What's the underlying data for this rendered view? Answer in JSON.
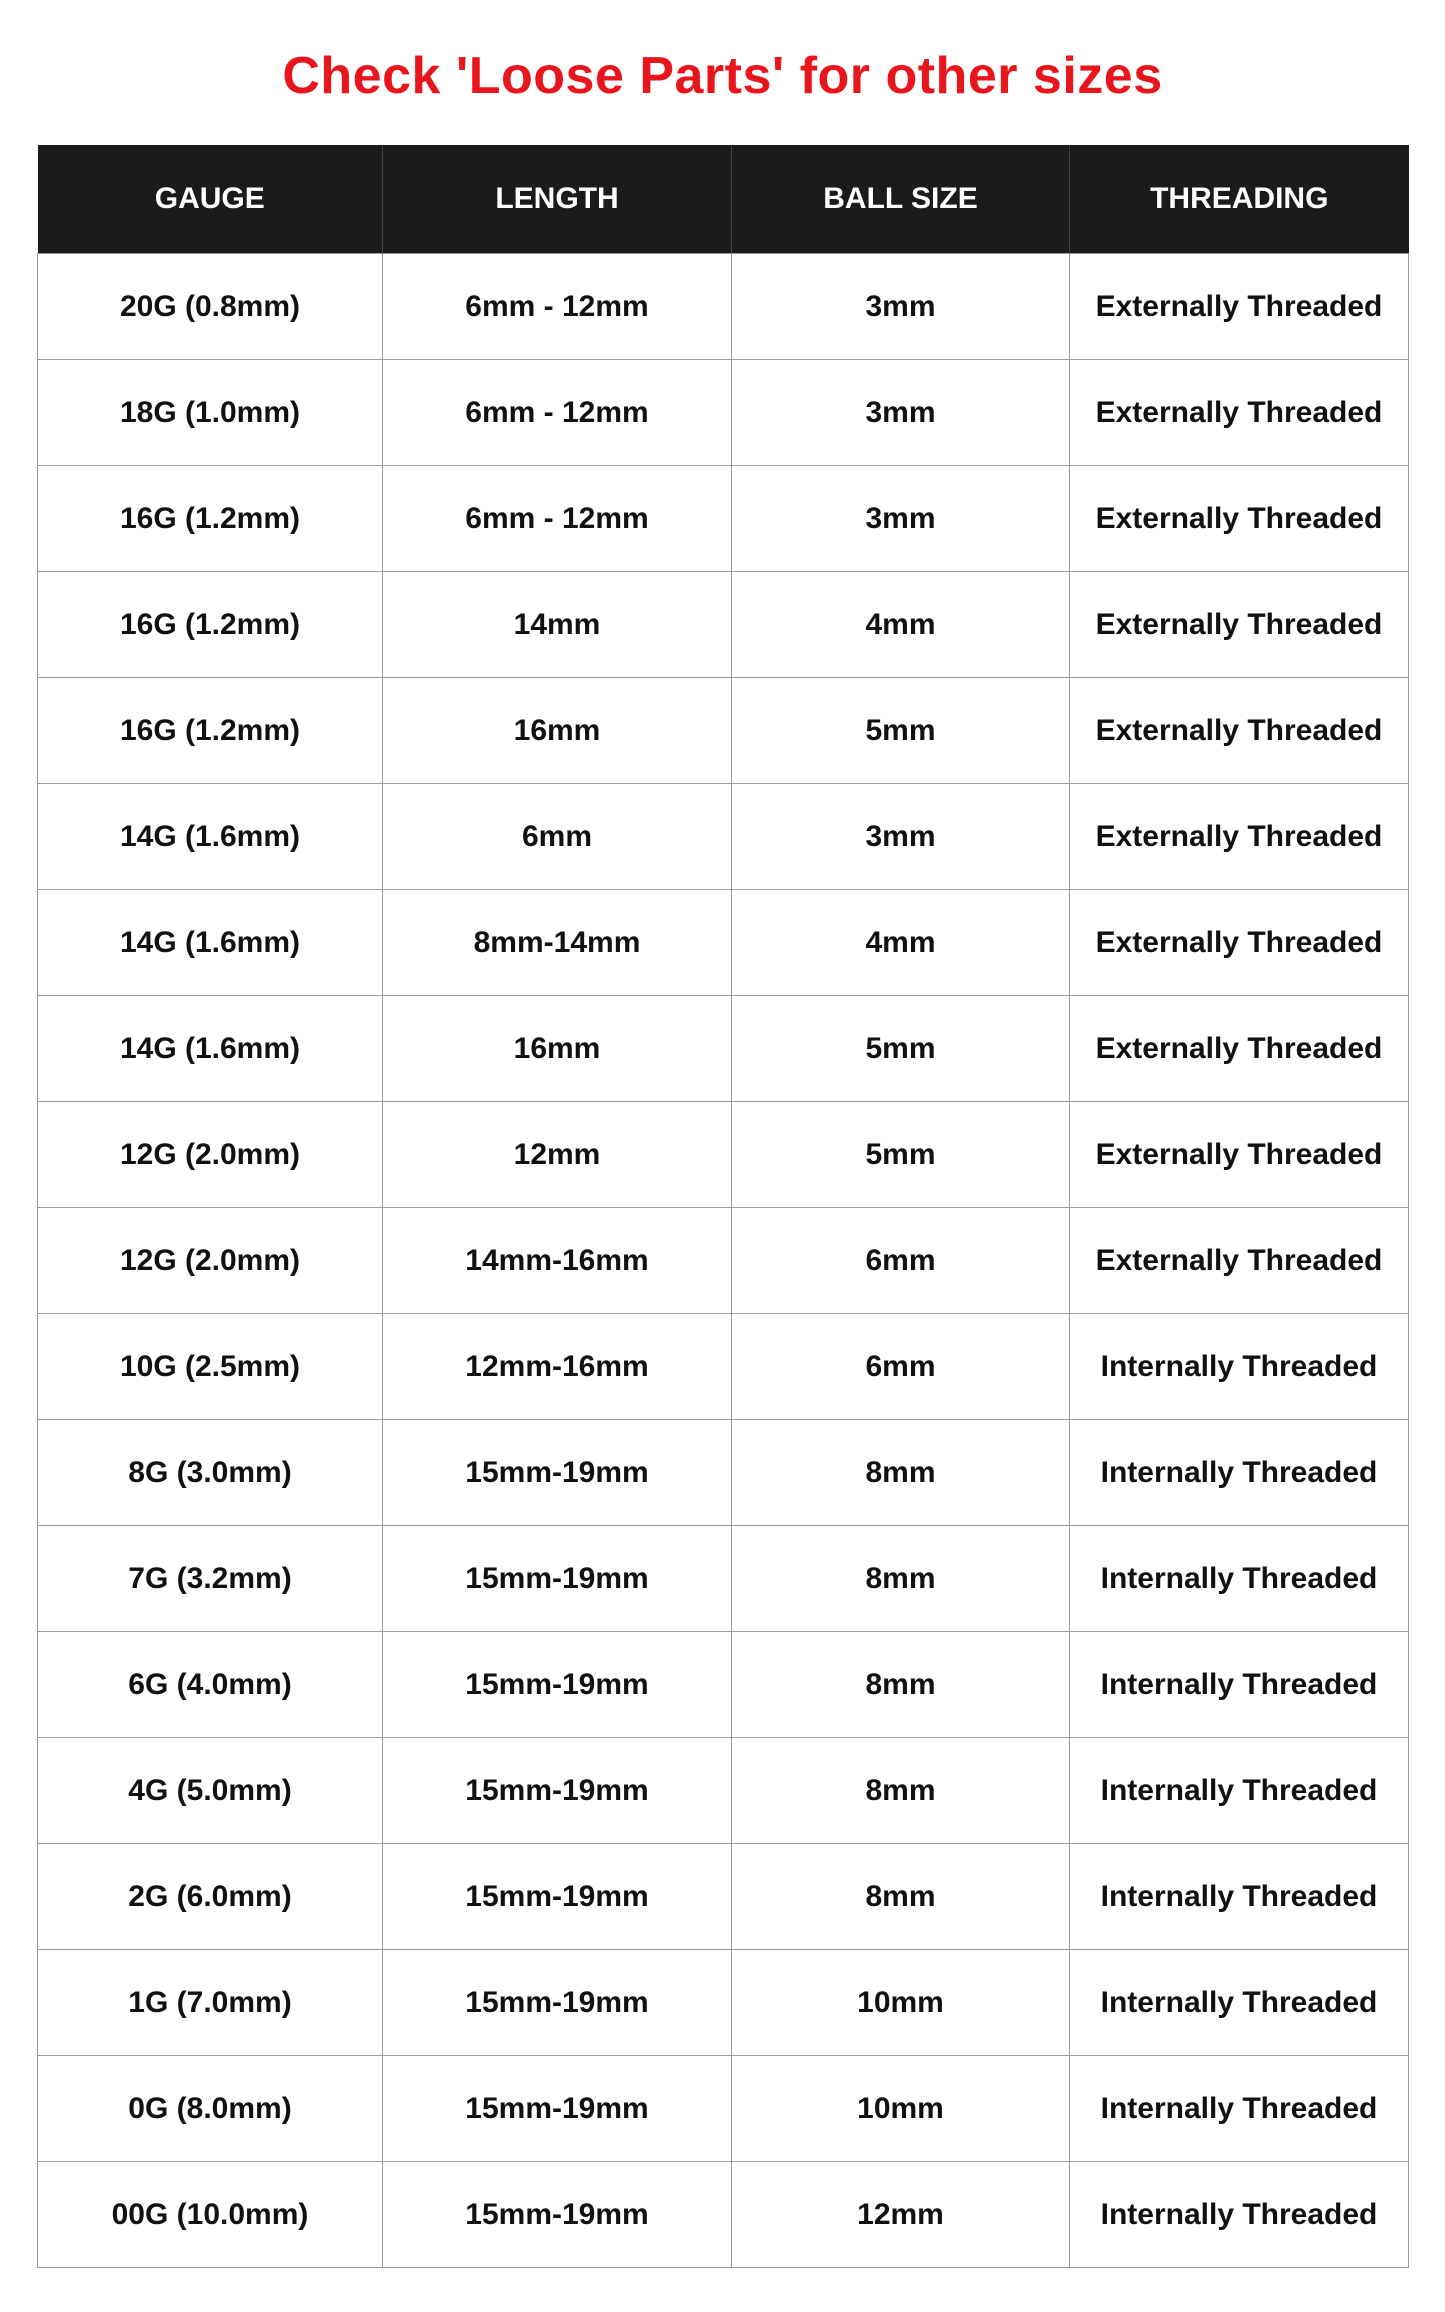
{
  "title": "Check 'Loose Parts' for other sizes",
  "colors": {
    "title": "#e8151d",
    "header_bg": "#1b1b1b"
  },
  "table": {
    "headers": [
      "GAUGE",
      "LENGTH",
      "BALL SIZE",
      "THREADING"
    ],
    "rows": [
      [
        "20G (0.8mm)",
        "6mm - 12mm",
        "3mm",
        "Externally Threaded"
      ],
      [
        "18G (1.0mm)",
        "6mm - 12mm",
        "3mm",
        "Externally Threaded"
      ],
      [
        "16G (1.2mm)",
        "6mm - 12mm",
        "3mm",
        "Externally Threaded"
      ],
      [
        "16G (1.2mm)",
        "14mm",
        "4mm",
        "Externally Threaded"
      ],
      [
        "16G (1.2mm)",
        "16mm",
        "5mm",
        "Externally Threaded"
      ],
      [
        "14G (1.6mm)",
        "6mm",
        "3mm",
        "Externally Threaded"
      ],
      [
        "14G (1.6mm)",
        "8mm-14mm",
        "4mm",
        "Externally Threaded"
      ],
      [
        "14G (1.6mm)",
        "16mm",
        "5mm",
        "Externally Threaded"
      ],
      [
        "12G (2.0mm)",
        "12mm",
        "5mm",
        "Externally Threaded"
      ],
      [
        "12G (2.0mm)",
        "14mm-16mm",
        "6mm",
        "Externally Threaded"
      ],
      [
        "10G (2.5mm)",
        "12mm-16mm",
        "6mm",
        "Internally Threaded"
      ],
      [
        "8G (3.0mm)",
        "15mm-19mm",
        "8mm",
        "Internally Threaded"
      ],
      [
        "7G (3.2mm)",
        "15mm-19mm",
        "8mm",
        "Internally Threaded"
      ],
      [
        "6G (4.0mm)",
        "15mm-19mm",
        "8mm",
        "Internally Threaded"
      ],
      [
        "4G (5.0mm)",
        "15mm-19mm",
        "8mm",
        "Internally Threaded"
      ],
      [
        "2G (6.0mm)",
        "15mm-19mm",
        "8mm",
        "Internally Threaded"
      ],
      [
        "1G (7.0mm)",
        "15mm-19mm",
        "10mm",
        "Internally Threaded"
      ],
      [
        "0G (8.0mm)",
        "15mm-19mm",
        "10mm",
        "Internally Threaded"
      ],
      [
        "00G (10.0mm)",
        "15mm-19mm",
        "12mm",
        "Internally Threaded"
      ]
    ]
  }
}
